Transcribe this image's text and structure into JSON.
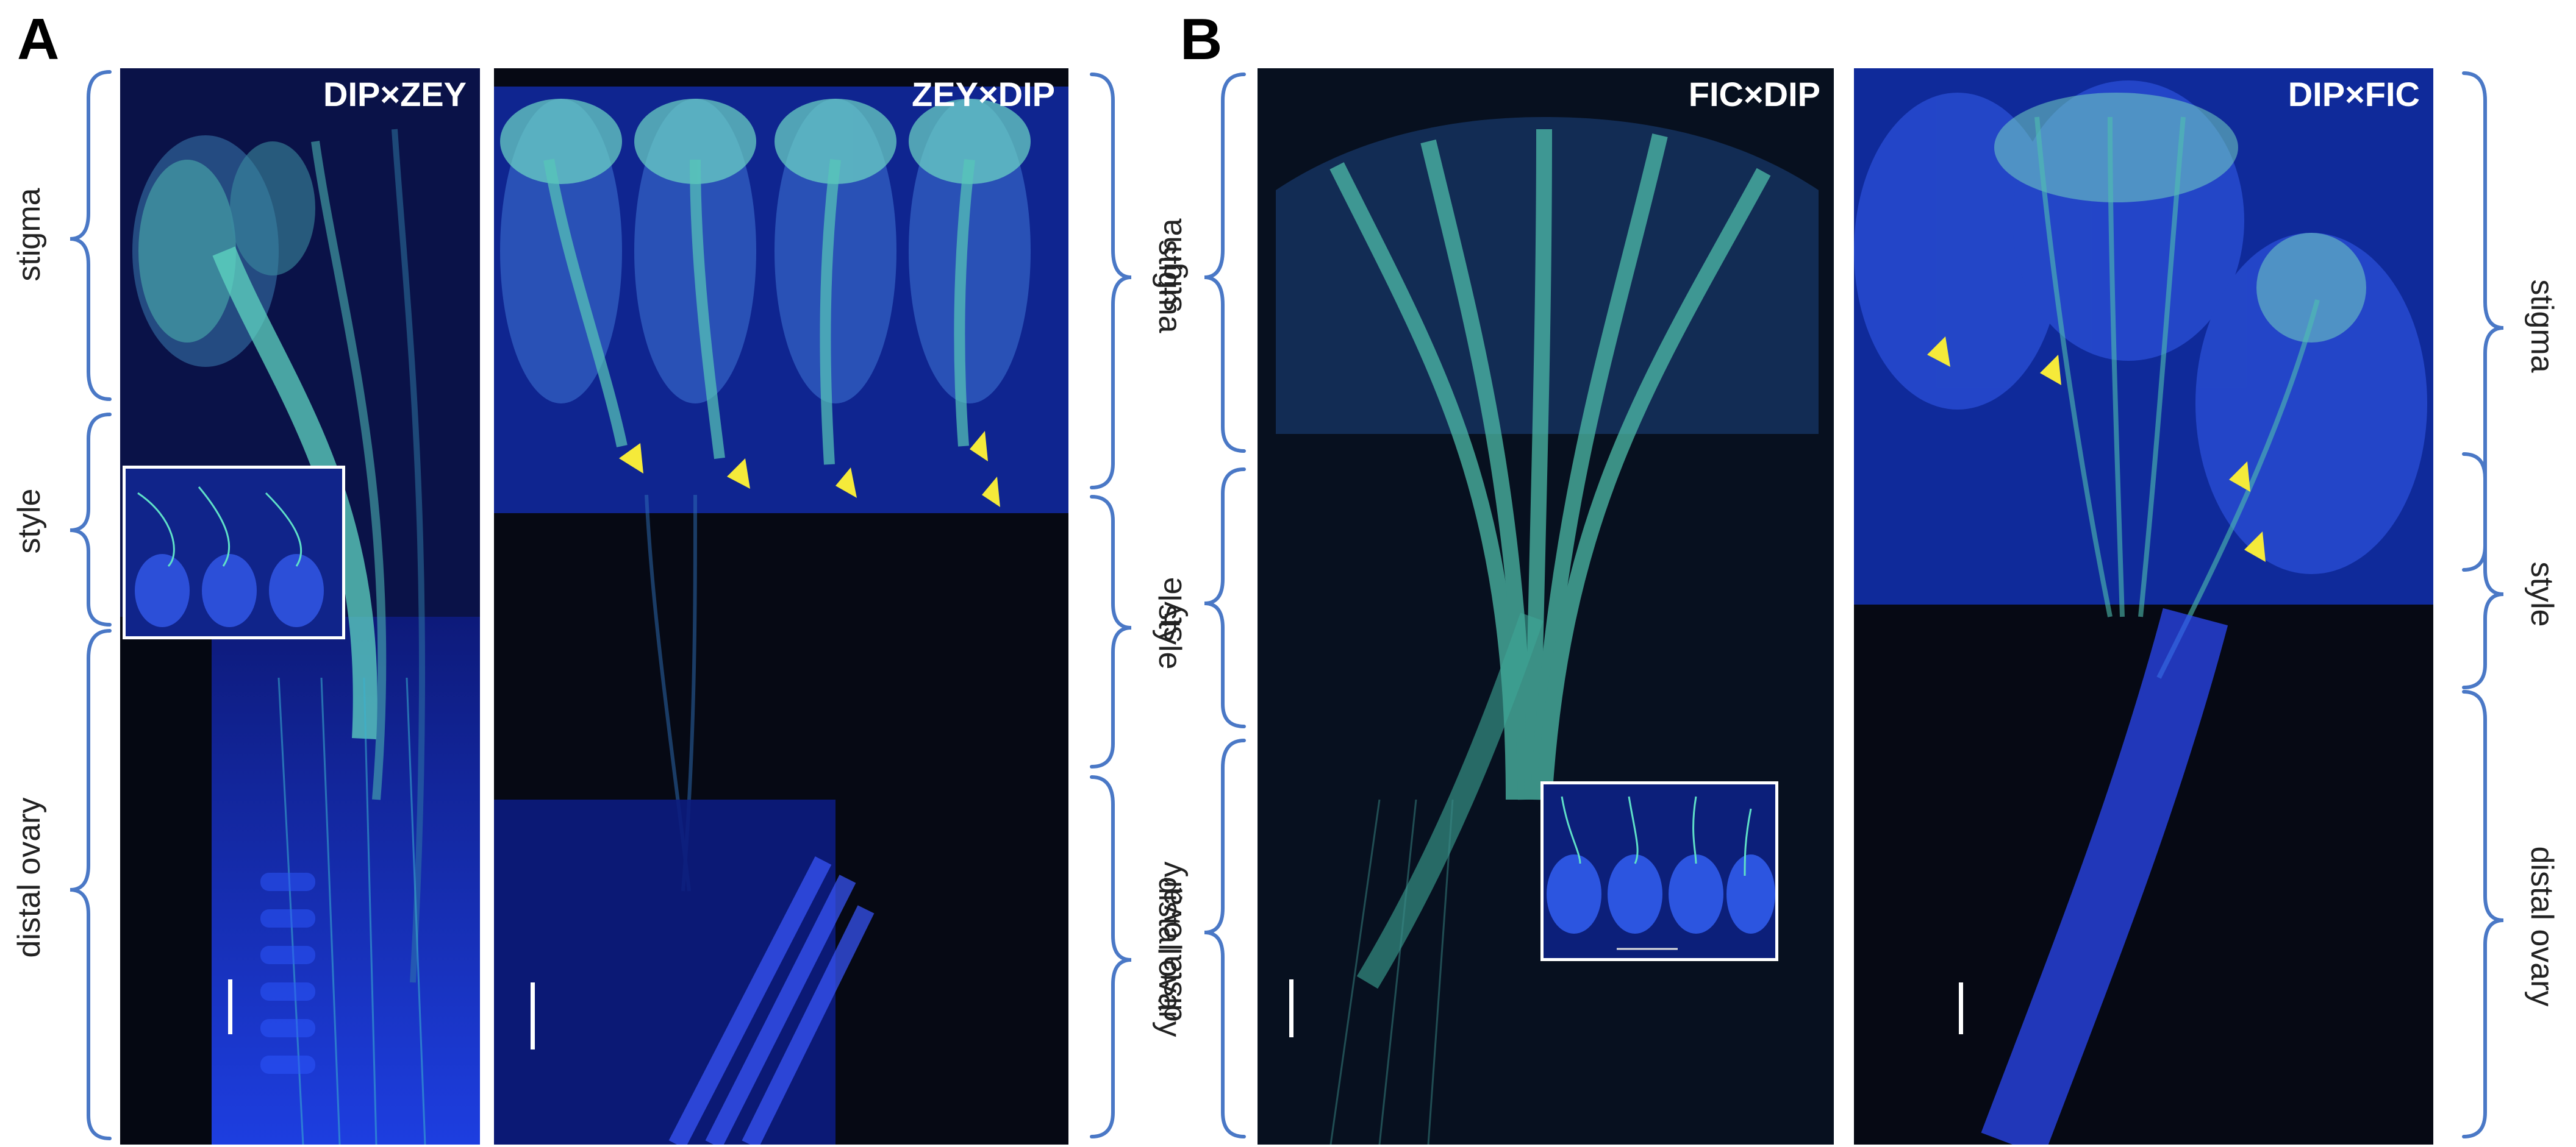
{
  "panels": {
    "a_letter": "A",
    "b_letter": "B"
  },
  "images": [
    {
      "title": "DIP×ZEY"
    },
    {
      "title": "ZEY×DIP"
    },
    {
      "title": "FIC×DIP"
    },
    {
      "title": "DIP×FIC"
    }
  ],
  "labels": {
    "stigma": "stigma",
    "style": "style",
    "distal_ovary": "distal ovary"
  },
  "colors": {
    "background_dark": "#050812",
    "tissue_blue": "#1e3cff",
    "pollen_tube_cyan": "#3fd0c0",
    "arrowhead_yellow": "#f5ea3a",
    "bracket_blue": "#4a78c6"
  },
  "annotations": {
    "arrowheads": "yellow triangles marking pollen tube entry",
    "scale_bars": "white vertical scale bars"
  }
}
